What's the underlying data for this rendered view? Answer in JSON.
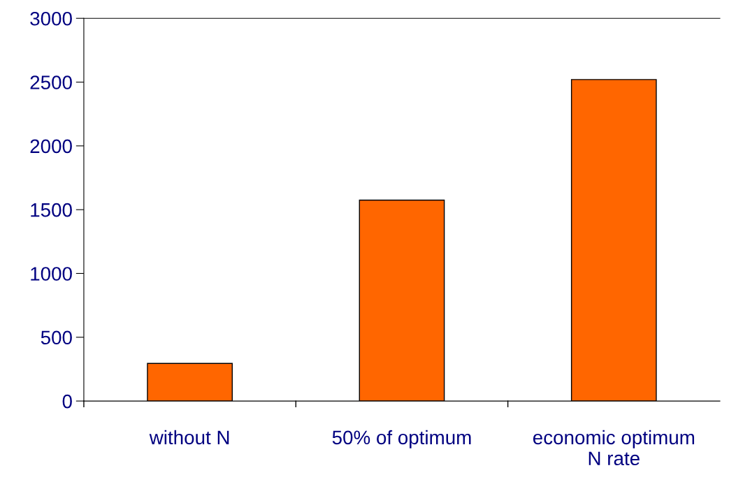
{
  "chart_data": {
    "type": "bar",
    "categories": [
      "without N",
      "50% of optimum",
      "economic optimum\nN rate"
    ],
    "values": [
      295,
      1575,
      2520
    ],
    "color": "#ff6600",
    "ylim": [
      0,
      3000
    ],
    "yticks": [
      0,
      500,
      1000,
      1500,
      2000,
      2500,
      3000
    ],
    "grid": false,
    "legend": false
  }
}
